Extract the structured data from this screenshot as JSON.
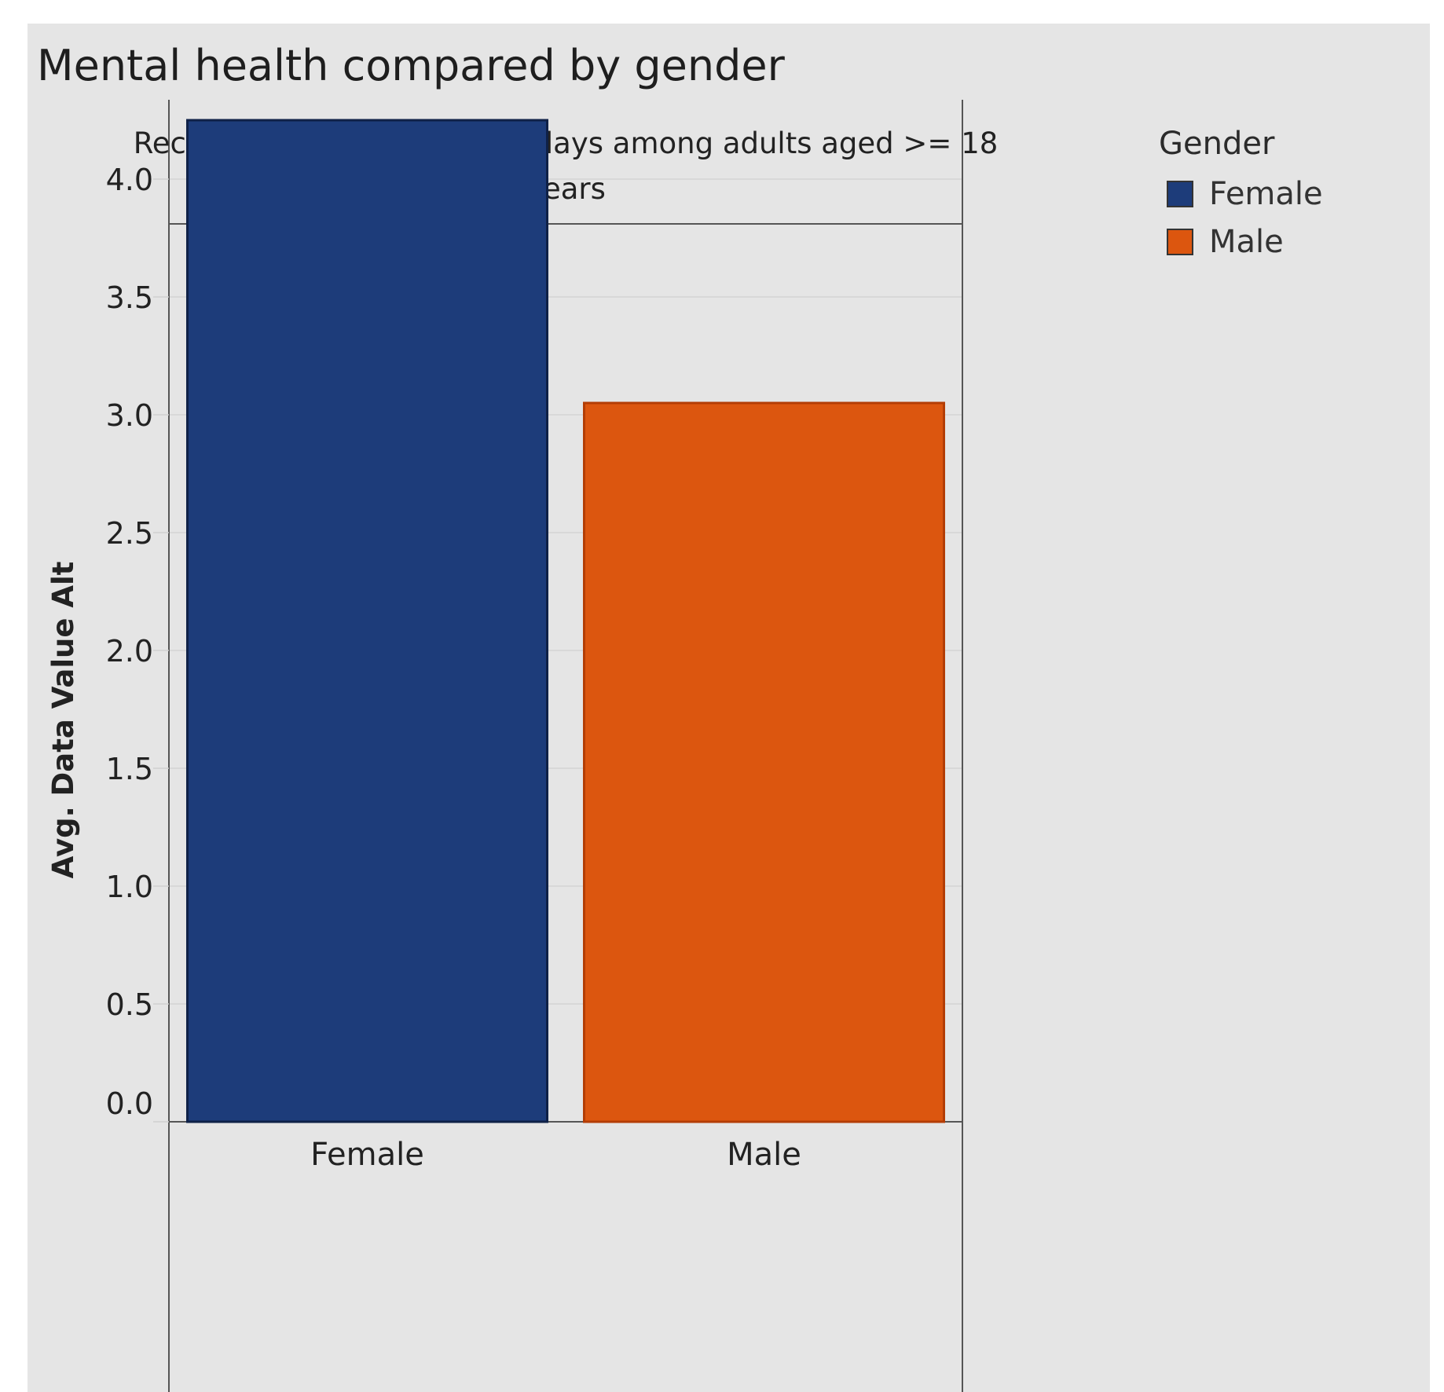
{
  "title": "Mental health compared by gender",
  "legend": {
    "title": "Gender",
    "items": [
      {
        "label": "Female",
        "color": "#1d3c7a"
      },
      {
        "label": "Male",
        "color": "#dc560f"
      }
    ]
  },
  "chart_data": {
    "type": "bar",
    "title": "Mental health compared by gender",
    "panel_header": "Recent mentally unhealthy days among adults aged >= 18 years",
    "panel_header_lines": [
      "Recent mentally unhealthy days among adults aged >= 18",
      "years"
    ],
    "xlabel": "",
    "ylabel": "Avg. Data Value Alt",
    "categories": [
      "Female",
      "Male"
    ],
    "values": [
      4.25,
      3.05
    ],
    "colors": [
      "#1d3c7a",
      "#dc560f"
    ],
    "ylim": [
      0,
      4.4
    ],
    "yticks": [
      0.0,
      0.5,
      1.0,
      1.5,
      2.0,
      2.5,
      3.0,
      3.5,
      4.0
    ],
    "ytick_labels": [
      "0.0",
      "0.5",
      "1.0",
      "1.5",
      "2.0",
      "2.5",
      "3.0",
      "3.5",
      "4.0"
    ],
    "grid": true,
    "legend_position": "right"
  }
}
